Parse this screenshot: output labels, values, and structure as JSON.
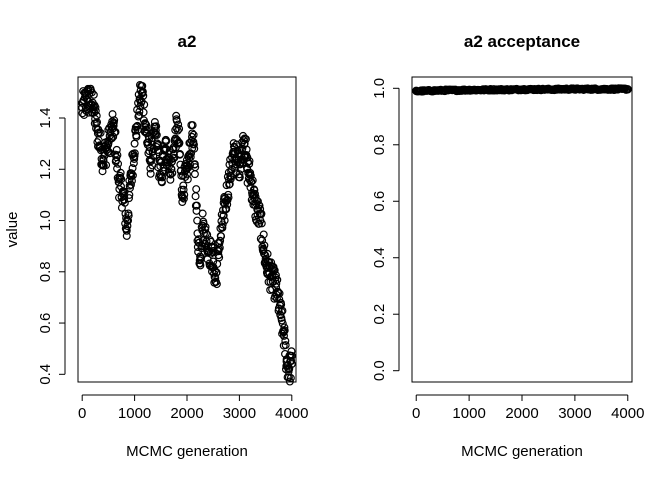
{
  "chart_data": [
    {
      "type": "scatter",
      "title": "a2",
      "xlabel": "MCMC generation",
      "ylabel": "value",
      "xlim": [
        -80,
        4080
      ],
      "ylim": [
        0.37,
        1.56
      ],
      "xticks": [
        0,
        1000,
        2000,
        3000,
        4000
      ],
      "yticks": [
        0.4,
        0.6,
        0.8,
        1.0,
        1.2,
        1.4
      ],
      "ytick_labels": [
        "0.4",
        "0.6",
        "0.8",
        "1.0",
        "1.2",
        "1.4"
      ],
      "grid": false,
      "marker": "open-circle",
      "series": [
        {
          "x": [
            0,
            100,
            200,
            300,
            400,
            500,
            600,
            700,
            800,
            850,
            900,
            1000,
            1100,
            1150,
            1200,
            1300,
            1400,
            1500,
            1600,
            1700,
            1800,
            1850,
            1900,
            2000,
            2100,
            2150,
            2200,
            2250,
            2300,
            2400,
            2500,
            2550,
            2600,
            2700,
            2800,
            2900,
            3000,
            3100,
            3150,
            3200,
            3300,
            3400,
            3500,
            3600,
            3700,
            3800,
            3850,
            3900,
            3950,
            4000
          ],
          "y": [
            1.44,
            1.47,
            1.46,
            1.34,
            1.24,
            1.3,
            1.37,
            1.15,
            1.08,
            0.96,
            1.1,
            1.3,
            1.47,
            1.5,
            1.38,
            1.23,
            1.34,
            1.17,
            1.28,
            1.2,
            1.36,
            1.3,
            1.12,
            1.18,
            1.34,
            1.22,
            0.95,
            0.86,
            0.98,
            0.9,
            0.84,
            0.76,
            0.88,
            1.02,
            1.16,
            1.26,
            1.22,
            1.32,
            1.2,
            1.18,
            1.06,
            1.0,
            0.84,
            0.78,
            0.74,
            0.62,
            0.55,
            0.45,
            0.42,
            0.44
          ]
        }
      ]
    },
    {
      "type": "scatter",
      "title": "a2 acceptance",
      "xlabel": "MCMC generation",
      "ylabel": "",
      "xlim": [
        -80,
        4080
      ],
      "ylim": [
        -0.04,
        1.04
      ],
      "xticks": [
        0,
        1000,
        2000,
        3000,
        4000
      ],
      "yticks": [
        0.0,
        0.2,
        0.4,
        0.6,
        0.8,
        1.0
      ],
      "ytick_labels": [
        "0.0",
        "0.2",
        "0.4",
        "0.6",
        "0.8",
        "1.0"
      ],
      "grid": false,
      "marker": "open-circle",
      "series": [
        {
          "x": [
            0,
            200,
            400,
            600,
            800,
            1000,
            1200,
            1400,
            1600,
            1800,
            2000,
            2200,
            2400,
            2600,
            2800,
            3000,
            3200,
            3400,
            3600,
            3800,
            4000
          ],
          "y": [
            0.99,
            0.991,
            0.992,
            0.993,
            0.993,
            0.994,
            0.994,
            0.995,
            0.995,
            0.995,
            0.996,
            0.996,
            0.996,
            0.996,
            0.997,
            0.997,
            0.997,
            0.997,
            0.997,
            0.997,
            0.997
          ]
        }
      ]
    }
  ]
}
